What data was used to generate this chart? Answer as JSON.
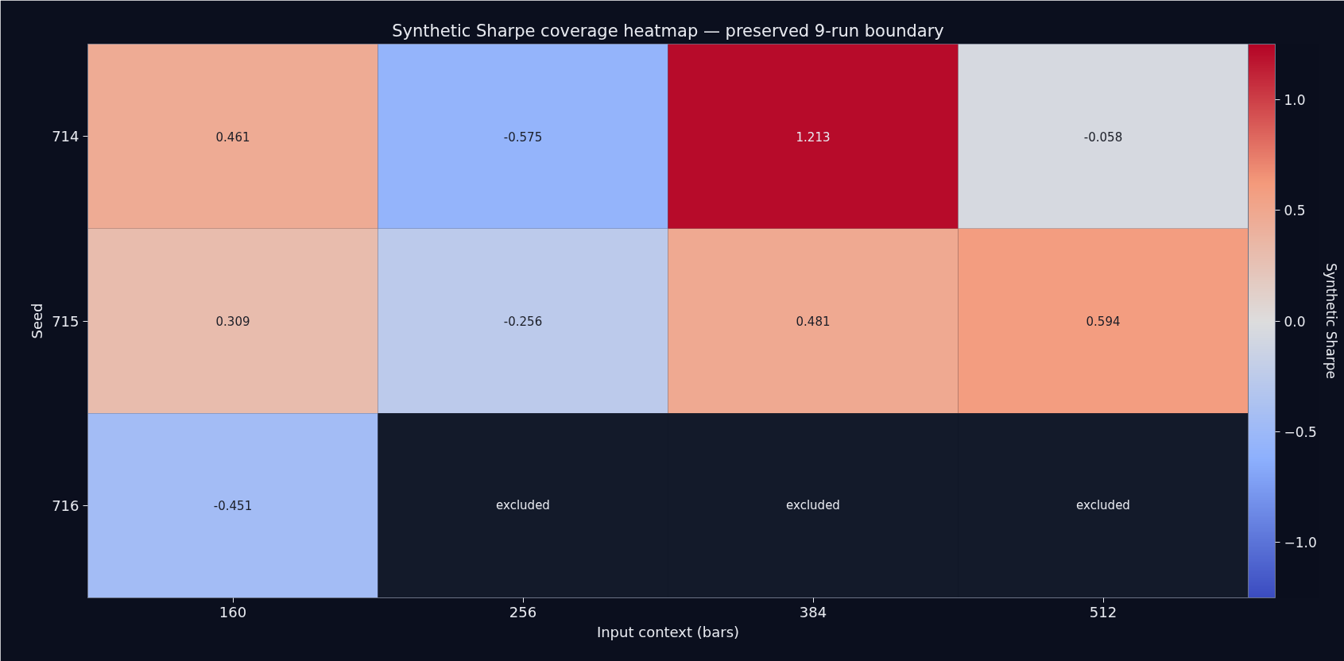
{
  "chart_data": {
    "type": "heatmap",
    "title": "Synthetic Sharpe coverage heatmap — preserved 9-run boundary",
    "xlabel": "Input context (bars)",
    "ylabel": "Seed",
    "clabel": "Synthetic Sharpe",
    "categories": [
      "160",
      "256",
      "384",
      "512"
    ],
    "y_categories": [
      "714",
      "715",
      "716"
    ],
    "cells": [
      [
        0.461,
        -0.575,
        1.213,
        -0.058
      ],
      [
        0.309,
        -0.256,
        0.481,
        0.594
      ],
      [
        -0.451,
        null,
        null,
        null
      ]
    ],
    "cell_labels": [
      [
        "0.461",
        "-0.575",
        "1.213",
        "-0.058"
      ],
      [
        "0.309",
        "-0.256",
        "0.481",
        "0.594"
      ],
      [
        "-0.451",
        "excluded",
        "excluded",
        "excluded"
      ]
    ],
    "clim": [
      -1.25,
      1.25
    ],
    "cticks": [
      {
        "value": -1.0,
        "label": "−1.0"
      },
      {
        "value": -0.5,
        "label": "−0.5"
      },
      {
        "value": 0.0,
        "label": "0.0"
      },
      {
        "value": 0.5,
        "label": "0.5"
      },
      {
        "value": 1.0,
        "label": "1.0"
      }
    ]
  }
}
